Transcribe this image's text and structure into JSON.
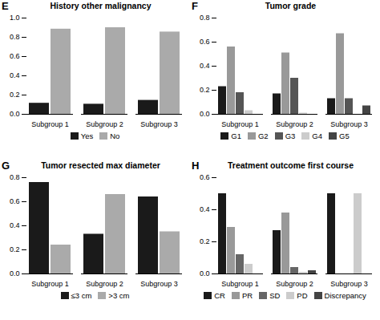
{
  "chart_data": [
    {
      "type": "bar",
      "title": "History other malignancy",
      "annotations": [
        "E"
      ],
      "categories": [
        "Subgroup 1",
        "Subgroup 2",
        "Subgroup 3"
      ],
      "series": [
        {
          "name": "Yes",
          "color": "#1a1a1a",
          "values": [
            0.115,
            0.105,
            0.145
          ]
        },
        {
          "name": "No",
          "color": "#aaaaaa",
          "values": [
            0.885,
            0.9,
            0.855
          ]
        }
      ],
      "ylim": [
        0,
        1.0
      ],
      "yticks": [
        {
          "value": 0,
          "label": "0.0"
        },
        0.2,
        0.4,
        0.6,
        0.8,
        {
          "value": 1.0,
          "label": "1.0"
        }
      ],
      "grid": false,
      "legend": "bottom"
    },
    {
      "type": "bar",
      "title": "Tumor grade",
      "annotations": [
        "F"
      ],
      "categories": [
        "Subgroup 1",
        "Subgroup 2",
        "Subgroup 3"
      ],
      "series": [
        {
          "name": "G1",
          "color": "#1a1a1a",
          "values": [
            0.23,
            0.17,
            0.13
          ]
        },
        {
          "name": "G2",
          "color": "#999999",
          "values": [
            0.56,
            0.51,
            0.67
          ]
        },
        {
          "name": "G3",
          "color": "#555555",
          "values": [
            0.18,
            0.3,
            0.13
          ]
        },
        {
          "name": "G4",
          "color": "#cccccc",
          "values": [
            0.03,
            0.01,
            0.0
          ]
        },
        {
          "name": "G5",
          "color": "#444444",
          "values": [
            0.0,
            0.0,
            0.07
          ]
        }
      ],
      "ylim": [
        0,
        0.8
      ],
      "yticks": [
        {
          "value": 0,
          "label": "0.0"
        },
        0.2,
        0.4,
        0.6,
        0.8
      ],
      "grid": false,
      "legend": "bottom"
    },
    {
      "type": "bar",
      "title": "Tumor resected max diameter",
      "annotations": [
        "G"
      ],
      "categories": [
        "Subgroup 1",
        "Subgroup 2",
        "Subgroup 3"
      ],
      "series": [
        {
          "name": "≤3 cm",
          "color": "#1a1a1a",
          "values": [
            0.76,
            0.33,
            0.64
          ]
        },
        {
          "name": ">3 cm",
          "color": "#aaaaaa",
          "values": [
            0.24,
            0.66,
            0.35
          ]
        }
      ],
      "ylim": [
        0,
        0.8
      ],
      "yticks": [
        {
          "value": 0,
          "label": "0.0"
        },
        0.2,
        0.4,
        0.6,
        0.8
      ],
      "grid": false,
      "legend": "bottom"
    },
    {
      "type": "bar",
      "title": "Treatment outcome first course",
      "annotations": [
        "H"
      ],
      "categories": [
        "Subgroup 1",
        "Subgroup 2",
        "Subgroup 3"
      ],
      "series": [
        {
          "name": "CR",
          "color": "#1a1a1a",
          "values": [
            0.5,
            0.27,
            0.5
          ]
        },
        {
          "name": "PR",
          "color": "#999999",
          "values": [
            0.29,
            0.38,
            0.0
          ]
        },
        {
          "name": "SD",
          "color": "#666666",
          "values": [
            0.12,
            0.04,
            0.0
          ]
        },
        {
          "name": "PD",
          "color": "#cccccc",
          "values": [
            0.06,
            0.01,
            0.5
          ]
        },
        {
          "name": "Discrepancy",
          "color": "#444444",
          "values": [
            0.0,
            0.02,
            0.0
          ]
        }
      ],
      "ylim": [
        0,
        0.6
      ],
      "yticks": [
        {
          "value": 0,
          "label": "0.0"
        },
        0.2,
        0.4,
        0.6
      ],
      "grid": false,
      "legend": "bottom"
    }
  ]
}
